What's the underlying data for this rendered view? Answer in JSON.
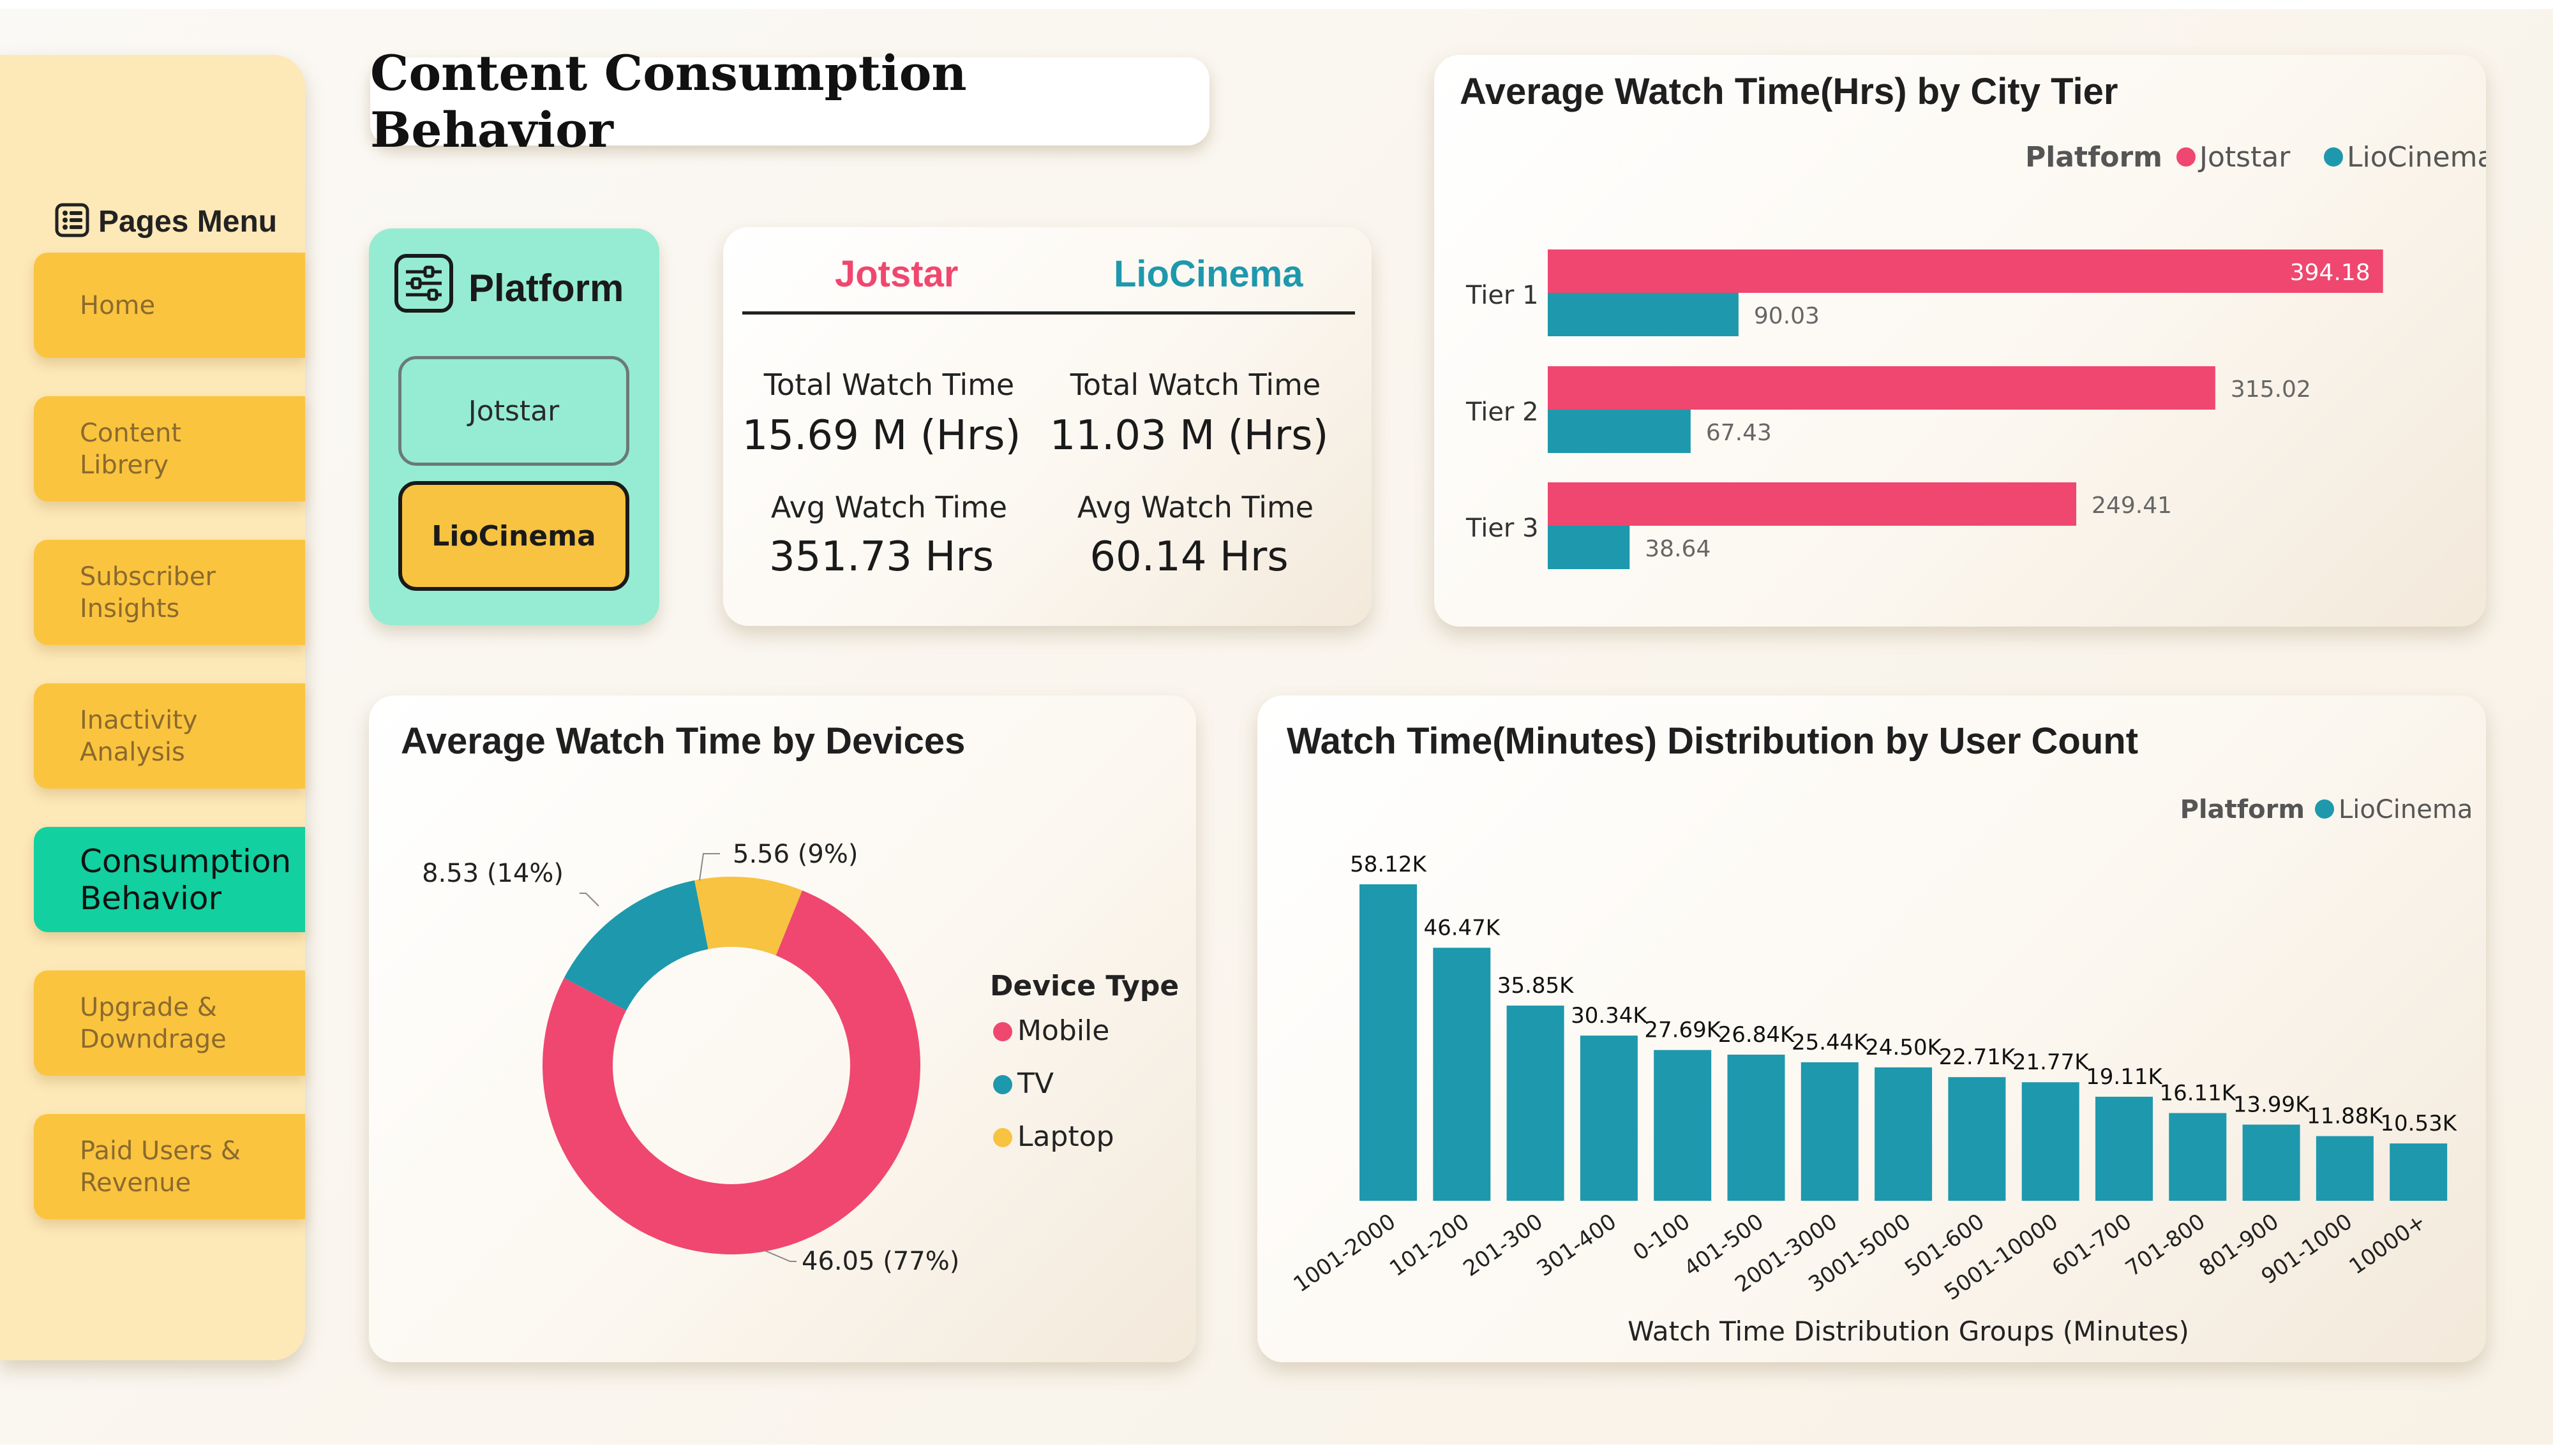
{
  "title": "Content Consumption Behavior",
  "menu": {
    "heading": "Pages Menu",
    "items": [
      {
        "label": "Home"
      },
      {
        "label": "Content\nLibrery"
      },
      {
        "label": "Subscriber\nInsights"
      },
      {
        "label": "Inactivity\nAnalysis"
      },
      {
        "label": "Consumption\nBehavior"
      },
      {
        "label": "Upgrade &\nDowndrage"
      },
      {
        "label": "Paid Users &\nRevenue"
      }
    ]
  },
  "platform_slicer": {
    "title": "Platform",
    "options": [
      "Jotstar",
      "LioCinema"
    ],
    "selected": "LioCinema"
  },
  "kpis": {
    "jotstar": {
      "name": "Jotstar",
      "total_label": "Total Watch Time",
      "total_value": "15.69 M (Hrs)",
      "avg_label": "Avg Watch Time",
      "avg_value": "351.73 Hrs"
    },
    "liocinema": {
      "name": "LioCinema",
      "total_label": "Total Watch Time",
      "total_value": "11.03 M (Hrs)",
      "avg_label": "Avg Watch Time",
      "avg_value": "60.14 Hrs"
    }
  },
  "colors": {
    "jotstar": "#ef476f",
    "liocinema": "#1e98ac",
    "laptop": "#f7c340",
    "menu": "#fbc43f",
    "menu_active": "#13d0a0"
  },
  "chart_data": [
    {
      "type": "bar",
      "orientation": "horizontal",
      "title": "Average Watch Time(Hrs) by City Tier",
      "legend_title": "Platform",
      "legend_position": "top-right",
      "categories": [
        "Tier 1",
        "Tier 2",
        "Tier 3"
      ],
      "series": [
        {
          "name": "Jotstar",
          "values": [
            394.18,
            315.02,
            249.41
          ],
          "labels": [
            "394.18",
            "315.02",
            "249.41"
          ]
        },
        {
          "name": "LioCinema",
          "values": [
            90.03,
            67.43,
            38.64
          ],
          "labels": [
            "90.03",
            "67.43",
            "38.64"
          ]
        }
      ],
      "xlim": [
        0,
        400
      ]
    },
    {
      "type": "pie",
      "donut": true,
      "title": "Average Watch Time by Devices",
      "legend_title": "Device Type",
      "legend_position": "right",
      "slices": [
        {
          "name": "Mobile",
          "value": 46.05,
          "label": "46.05 (77%)"
        },
        {
          "name": "TV",
          "value": 8.53,
          "label": "8.53 (14%)"
        },
        {
          "name": "Laptop",
          "value": 5.56,
          "label": "5.56 (9%)"
        }
      ]
    },
    {
      "type": "bar",
      "title": "Watch Time(Minutes) Distribution by User Count",
      "legend_title": "Platform",
      "legend_position": "top-right",
      "xlabel": "Watch Time Distribution Groups (Minutes)",
      "ylabel": "",
      "categories": [
        "1001-2000",
        "101-200",
        "201-300",
        "301-400",
        "0-100",
        "401-500",
        "2001-3000",
        "3001-5000",
        "501-600",
        "5001-10000",
        "601-700",
        "701-800",
        "801-900",
        "901-1000",
        "10000+"
      ],
      "series": [
        {
          "name": "LioCinema",
          "values": [
            58120,
            46470,
            35850,
            30340,
            27690,
            26840,
            25440,
            24500,
            22710,
            21770,
            19110,
            16110,
            13990,
            11880,
            10530
          ],
          "labels": [
            "58.12K",
            "46.47K",
            "35.85K",
            "30.34K",
            "27.69K",
            "26.84K",
            "25.44K",
            "24.50K",
            "22.71K",
            "21.77K",
            "19.11K",
            "16.11K",
            "13.99K",
            "11.88K",
            "10.53K"
          ]
        }
      ],
      "ylim": [
        0,
        60000
      ]
    }
  ]
}
